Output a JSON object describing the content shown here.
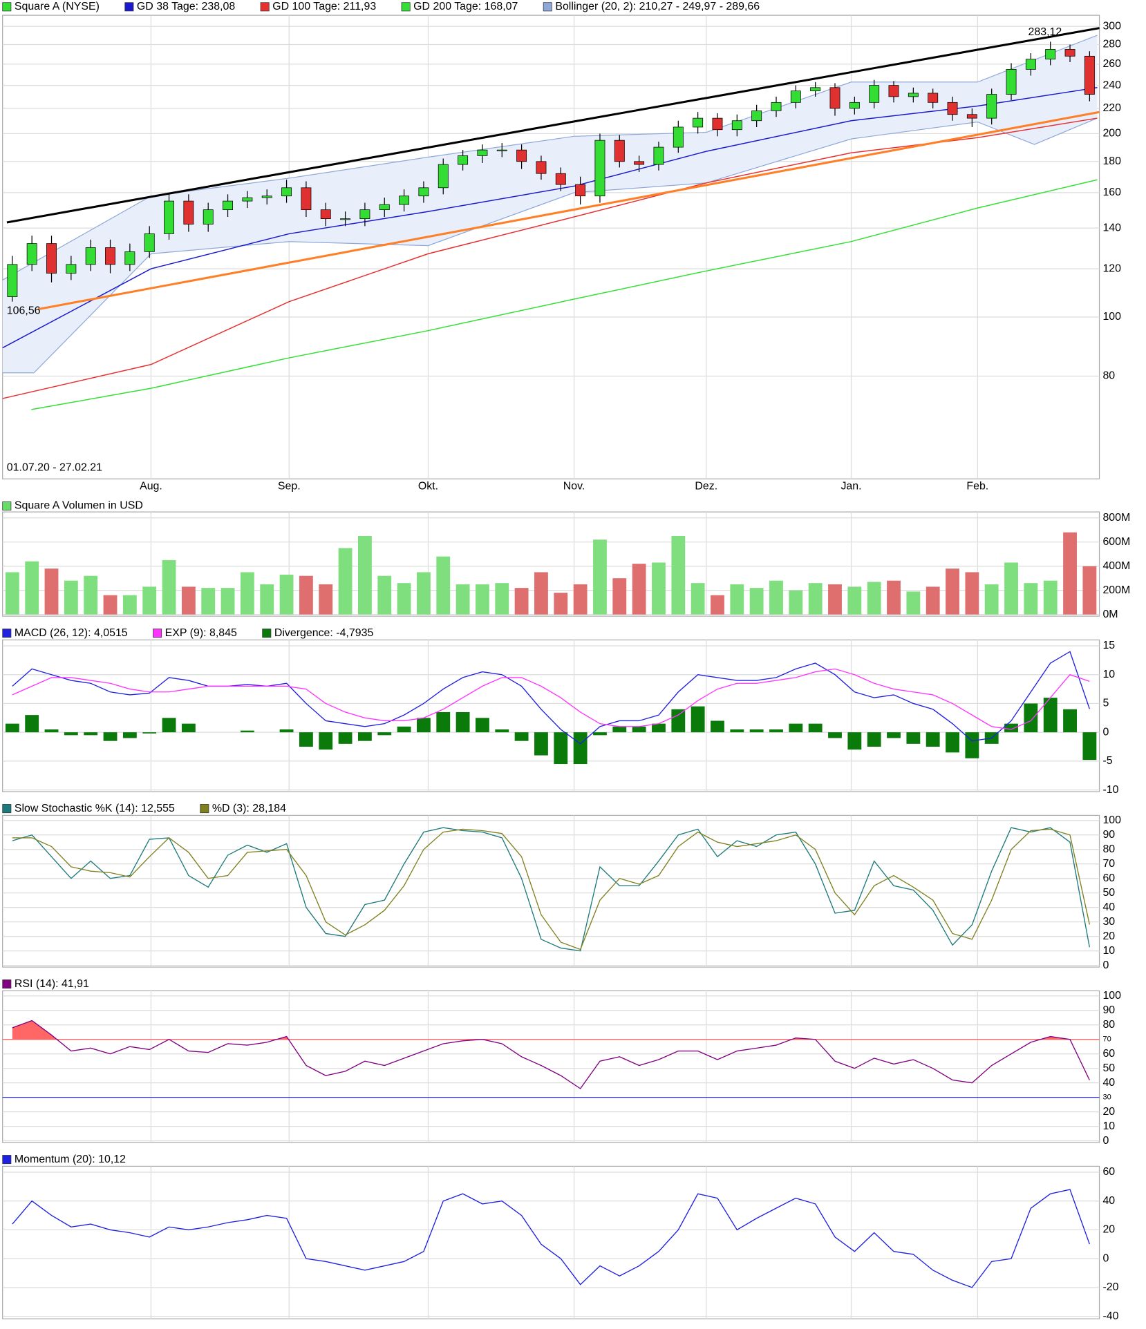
{
  "chart_data": [
    {
      "type": "candlestick",
      "name": "Square A (NYSE)",
      "up_color": "#33dd33",
      "down_color": "#e03030",
      "log": true,
      "ylim": [
        54.6,
        312.8
      ],
      "yticks": [
        80,
        100,
        120,
        140,
        160,
        180,
        200,
        220,
        240,
        260,
        280,
        300
      ],
      "xlim": [
        0,
        56
      ],
      "xticks": [
        {
          "value": 7.58,
          "label": "Aug."
        },
        {
          "value": 14.63,
          "label": "Sep."
        },
        {
          "value": 21.73,
          "label": "Okt."
        },
        {
          "value": 29.18,
          "label": "Nov."
        },
        {
          "value": 35.93,
          "label": "Dez."
        },
        {
          "value": 43.33,
          "label": "Jan."
        },
        {
          "value": 49.78,
          "label": "Feb."
        }
      ],
      "grid": true,
      "open": [
        108,
        122,
        132,
        118,
        122,
        130,
        122,
        128,
        137,
        155,
        142,
        150,
        155,
        157,
        158,
        163,
        150,
        145,
        145,
        150,
        153,
        158,
        163,
        178,
        184,
        188,
        188,
        180,
        172,
        165,
        158,
        195,
        180,
        178,
        190,
        205,
        212,
        203,
        210,
        218,
        225,
        235,
        238,
        220,
        225,
        240,
        230,
        233,
        225,
        215,
        212,
        232,
        255,
        265,
        275,
        268
      ],
      "high": [
        126,
        136,
        136,
        126,
        134,
        134,
        132,
        141,
        160,
        159,
        154,
        159,
        161,
        162,
        168,
        167,
        154,
        149,
        154,
        157,
        162,
        167,
        182,
        188,
        192,
        193,
        192,
        184,
        176,
        170,
        200,
        199,
        184,
        194,
        210,
        217,
        216,
        215,
        223,
        230,
        240,
        243,
        242,
        230,
        245,
        244,
        238,
        237,
        230,
        220,
        237,
        261,
        271,
        283,
        280,
        273
      ],
      "low": [
        106,
        119,
        114,
        115,
        119,
        118,
        119,
        125,
        134,
        138,
        138,
        146,
        151,
        153,
        154,
        146,
        141,
        141,
        141,
        146,
        149,
        154,
        159,
        174,
        179,
        183,
        175,
        168,
        161,
        153,
        154,
        176,
        173,
        174,
        186,
        200,
        198,
        198,
        205,
        213,
        220,
        230,
        214,
        215,
        220,
        225,
        225,
        220,
        210,
        205,
        207,
        227,
        249,
        259,
        262,
        226
      ],
      "close": [
        122,
        132,
        118,
        122,
        130,
        122,
        128,
        137,
        155,
        142,
        150,
        155,
        157,
        158,
        163,
        150,
        145,
        145,
        150,
        153,
        158,
        163,
        178,
        184,
        188,
        188,
        180,
        172,
        165,
        158,
        195,
        180,
        178,
        190,
        205,
        212,
        203,
        210,
        218,
        225,
        235,
        238,
        220,
        225,
        240,
        230,
        233,
        225,
        215,
        212,
        232,
        255,
        265,
        275,
        268,
        232
      ],
      "overlays": [
        {
          "name": "GD 38 Tage: 238,08",
          "color": "#1a1acc",
          "x": [
            0,
            7.58,
            14.63,
            21.73,
            29.18,
            35.93,
            43.33,
            49.78,
            55.89
          ],
          "values": [
            89,
            120,
            137,
            149,
            164,
            187,
            210,
            222,
            238
          ]
        },
        {
          "name": "GD 100 Tage: 211,93",
          "color": "#e83030",
          "x": [
            0,
            7.58,
            14.63,
            21.73,
            29.18,
            35.93,
            43.33,
            49.78,
            55.89
          ],
          "values": [
            73.5,
            83.6,
            106,
            127,
            146,
            166,
            186,
            197,
            212
          ]
        },
        {
          "name": "GD 200 Tage: 168,07",
          "color": "#33e033",
          "x": [
            1.47,
            7.58,
            14.63,
            21.73,
            29.18,
            35.93,
            43.33,
            49.78,
            55.89
          ],
          "values": [
            70.5,
            76.4,
            85.7,
            95,
            107,
            119,
            133,
            151,
            168
          ]
        }
      ],
      "bollinger": {
        "name": "Bollinger (20, 2): 210,27 - 249,97 - 289,66",
        "color": "#8fa8d8",
        "fill": "#e8effb",
        "upper": {
          "x": [
            0,
            7.58,
            14.63,
            21.73,
            29.18,
            35.93,
            43.33,
            49.78,
            55.89
          ],
          "values": [
            115,
            158,
            169,
            183,
            198,
            201,
            243,
            243,
            290
          ]
        },
        "lower": {
          "x": [
            0,
            1.6,
            7.58,
            14.63,
            21.73,
            29.18,
            35.93,
            43.33,
            49.78,
            52.68,
            55.89
          ],
          "values": [
            81,
            81,
            127,
            133,
            131,
            160,
            166,
            196,
            209,
            192,
            212
          ]
        }
      },
      "trendlines": [
        {
          "color": "#000000",
          "x": [
            0.22,
            56
          ],
          "values": [
            143,
            298
          ]
        },
        {
          "color": "#ff7f27",
          "x": [
            1.82,
            56
          ],
          "values": [
            103,
            217
          ]
        }
      ],
      "annotations": [
        "106,56",
        "283,12",
        "01.07.20 - 27.02.21"
      ]
    },
    {
      "type": "volume",
      "title": "Square A Volumen in USD",
      "color": "#66dd66",
      "up_color": "#7fdf7f",
      "down_color": "#df6f6f",
      "ylim": [
        0,
        800000000.0
      ],
      "yticks": [
        {
          "value": 0,
          "label": "0M"
        },
        {
          "value": 200000000.0,
          "label": "200M"
        },
        {
          "value": 400000000.0,
          "label": "400M"
        },
        {
          "value": 600000000.0,
          "label": "600M"
        },
        {
          "value": 800000000.0,
          "label": "800M"
        }
      ],
      "values": [
        350000000.0,
        440000000.0,
        380000000.0,
        280000000.0,
        320000000.0,
        160000000.0,
        160000000.0,
        230000000.0,
        450000000.0,
        230000000.0,
        220000000.0,
        220000000.0,
        350000000.0,
        250000000.0,
        330000000.0,
        320000000.0,
        250000000.0,
        550000000.0,
        650000000.0,
        320000000.0,
        260000000.0,
        350000000.0,
        480000000.0,
        250000000.0,
        250000000.0,
        260000000.0,
        220000000.0,
        350000000.0,
        180000000.0,
        250000000.0,
        620000000.0,
        300000000.0,
        420000000.0,
        430000000.0,
        650000000.0,
        260000000.0,
        160000000.0,
        250000000.0,
        220000000.0,
        280000000.0,
        200000000.0,
        260000000.0,
        250000000.0,
        230000000.0,
        270000000.0,
        280000000.0,
        190000000.0,
        230000000.0,
        380000000.0,
        350000000.0,
        250000000.0,
        430000000.0,
        260000000.0,
        280000000.0,
        680000000.0,
        400000000.0
      ]
    },
    {
      "type": "indicator",
      "ylim": [
        -10,
        15
      ],
      "yticks": [
        -10,
        -5,
        0,
        5,
        10,
        15
      ],
      "series": [
        {
          "name": "MACD (26, 12): 4,0515",
          "kind": "line",
          "color": "#2020e0",
          "values": [
            8,
            11,
            10,
            9,
            8.5,
            7,
            6.5,
            6.8,
            9.5,
            9,
            8,
            8,
            8.3,
            8,
            8.5,
            5,
            2,
            1.5,
            1,
            1.5,
            3,
            5,
            7.5,
            9.5,
            10.5,
            10,
            8,
            4,
            0.5,
            -2,
            1,
            2,
            2,
            3,
            7,
            10,
            9.5,
            9,
            9,
            9.5,
            11,
            12,
            10,
            7,
            6,
            6.5,
            5,
            4,
            1.5,
            -1.5,
            -1,
            2,
            7,
            12,
            14,
            4.0515
          ]
        },
        {
          "name": "EXP (9): 8,845",
          "kind": "line",
          "color": "#ff33ff",
          "values": [
            6.5,
            8,
            9.5,
            9.5,
            9,
            8.5,
            7.5,
            7,
            7,
            7.5,
            8,
            8,
            8,
            8,
            8,
            7.5,
            5,
            3.5,
            2.5,
            2,
            2,
            2.5,
            4,
            6,
            8,
            9.5,
            9.5,
            8,
            6,
            3.5,
            1.5,
            1,
            1,
            1.5,
            3,
            5.5,
            7.5,
            8.5,
            8.5,
            9,
            9.5,
            10.5,
            11,
            10,
            8.5,
            7.5,
            7,
            6.5,
            5,
            3,
            1,
            0.5,
            2,
            6,
            10,
            8.845
          ]
        },
        {
          "name": "Divergence: -4,7935",
          "kind": "bar",
          "color": "#0a7a0a",
          "values": [
            1.5,
            3,
            0.5,
            -0.5,
            -0.5,
            -1.5,
            -1,
            -0.2,
            2.5,
            1.5,
            0,
            0,
            0.3,
            0,
            0.5,
            -2.5,
            -3,
            -2,
            -1.5,
            -0.5,
            1,
            2.5,
            3.5,
            3.5,
            2.5,
            0.5,
            -1.5,
            -4,
            -5.5,
            -5.5,
            -0.5,
            1,
            1,
            1.5,
            4,
            4.5,
            2,
            0.5,
            0.5,
            0.5,
            1.5,
            1.5,
            -1,
            -3,
            -2.5,
            -1,
            -2,
            -2.5,
            -3.5,
            -4.5,
            -2,
            1.5,
            5,
            6,
            4,
            -4.7935
          ]
        }
      ]
    },
    {
      "type": "indicator",
      "ylim": [
        0,
        100
      ],
      "yticks": [
        0,
        10,
        20,
        30,
        40,
        50,
        60,
        70,
        80,
        90,
        100
      ],
      "series": [
        {
          "name": "Slow Stochastic %K (14): 12,555",
          "kind": "line",
          "color": "#1e7a7a",
          "values": [
            86,
            90,
            75,
            60,
            72,
            60,
            62,
            87,
            88,
            62,
            54,
            76,
            83,
            78,
            84,
            40,
            22,
            20,
            42,
            45,
            70,
            92,
            95,
            93,
            92,
            88,
            60,
            18,
            12,
            10,
            68,
            55,
            55,
            72,
            90,
            94,
            75,
            86,
            82,
            90,
            92,
            70,
            36,
            38,
            72,
            55,
            52,
            38,
            14,
            28,
            65,
            95,
            92,
            95,
            85,
            12.555
          ]
        },
        {
          "name": "%D (3): 28,184",
          "kind": "line",
          "color": "#808020",
          "values": [
            88,
            88,
            82,
            68,
            65,
            64,
            61,
            75,
            88,
            78,
            60,
            62,
            78,
            79,
            80,
            62,
            30,
            21,
            28,
            38,
            55,
            80,
            92,
            94,
            93,
            91,
            75,
            35,
            16,
            11,
            45,
            60,
            56,
            62,
            82,
            92,
            85,
            82,
            84,
            86,
            90,
            80,
            50,
            35,
            55,
            62,
            54,
            45,
            22,
            18,
            45,
            80,
            93,
            94,
            90,
            28.184
          ]
        }
      ]
    },
    {
      "type": "indicator",
      "ylim": [
        0,
        100
      ],
      "yticks": [
        0,
        10,
        20,
        40,
        50,
        60,
        80,
        90,
        100
      ],
      "levels": [
        {
          "value": 70,
          "color": "#ff5050"
        },
        {
          "value": 30,
          "color": "#3030e0"
        }
      ],
      "series": [
        {
          "name": "RSI (14): 41,91",
          "kind": "line",
          "color": "#800080",
          "fill_color": "#ff6666",
          "values": [
            78,
            83,
            73,
            62,
            64,
            60,
            65,
            63,
            70,
            62,
            61,
            67,
            66,
            68,
            72,
            52,
            45,
            48,
            55,
            52,
            57,
            62,
            67,
            69,
            70,
            67,
            58,
            52,
            45,
            36,
            55,
            58,
            52,
            56,
            62,
            62,
            56,
            62,
            64,
            66,
            71,
            70,
            55,
            50,
            57,
            53,
            56,
            50,
            42,
            40,
            52,
            60,
            68,
            72,
            70,
            41.91
          ]
        }
      ]
    },
    {
      "type": "indicator",
      "ylim": [
        -40,
        60
      ],
      "yticks": [
        -40,
        -20,
        0,
        20,
        40,
        60
      ],
      "series": [
        {
          "name": "Momentum (20): 10,12",
          "kind": "line",
          "color": "#2020e0",
          "values": [
            24,
            40,
            30,
            22,
            24,
            20,
            18,
            15,
            22,
            20,
            22,
            25,
            27,
            30,
            28,
            0,
            -2,
            -5,
            -8,
            -5,
            -2,
            5,
            40,
            45,
            38,
            40,
            30,
            10,
            0,
            -18,
            -5,
            -12,
            -5,
            5,
            20,
            45,
            42,
            20,
            28,
            35,
            42,
            38,
            15,
            5,
            18,
            5,
            3,
            -8,
            -15,
            -20,
            -2,
            0,
            35,
            45,
            48,
            10.12
          ]
        }
      ]
    }
  ]
}
